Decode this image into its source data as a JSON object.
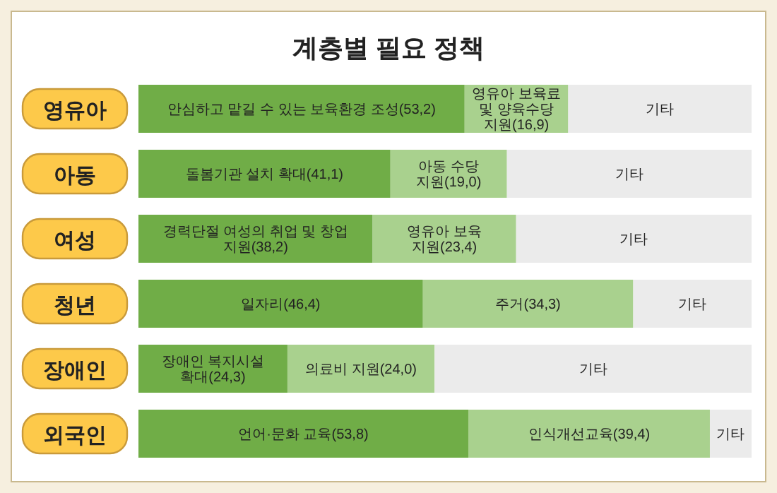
{
  "chart_data": {
    "type": "bar",
    "orientation": "horizontal",
    "stacked": true,
    "title": "계층별 필요 정책",
    "xlim": [
      0,
      100
    ],
    "categories": [
      "영유아",
      "아동",
      "여성",
      "청년",
      "장애인",
      "외국인"
    ],
    "series": [
      {
        "color": "#70ad47",
        "values": [
          53.2,
          41.1,
          38.2,
          46.4,
          24.3,
          53.8
        ],
        "value_labels": [
          "안심하고 맡길 수 있는 보육환경 조성(53,2)",
          "돌봄기관 설치 확대(41,1)",
          "경력단절 여성의 취업 및 창업 지원(38,2)",
          "일자리(46,4)",
          "장애인 복지시설 확대(24,3)",
          "언어·문화 교육(53,8)"
        ]
      },
      {
        "color": "#a9d18e",
        "values": [
          16.9,
          19.0,
          23.4,
          34.3,
          24.0,
          39.4
        ],
        "value_labels": [
          "영유아 보육료 및 양육수당 지원(16,9)",
          "아동 수당 지원(19,0)",
          "영유아 보육 지원(23,4)",
          "주거(34,3)",
          "의료비 지원(24,0)",
          "인식개선교육(39,4)"
        ]
      },
      {
        "color": "#ebebeb",
        "values": [
          29.9,
          39.9,
          38.4,
          19.3,
          51.7,
          6.8
        ],
        "value_labels": [
          "기타",
          "기타",
          "기타",
          "기타",
          "기타",
          "기타"
        ]
      }
    ]
  }
}
